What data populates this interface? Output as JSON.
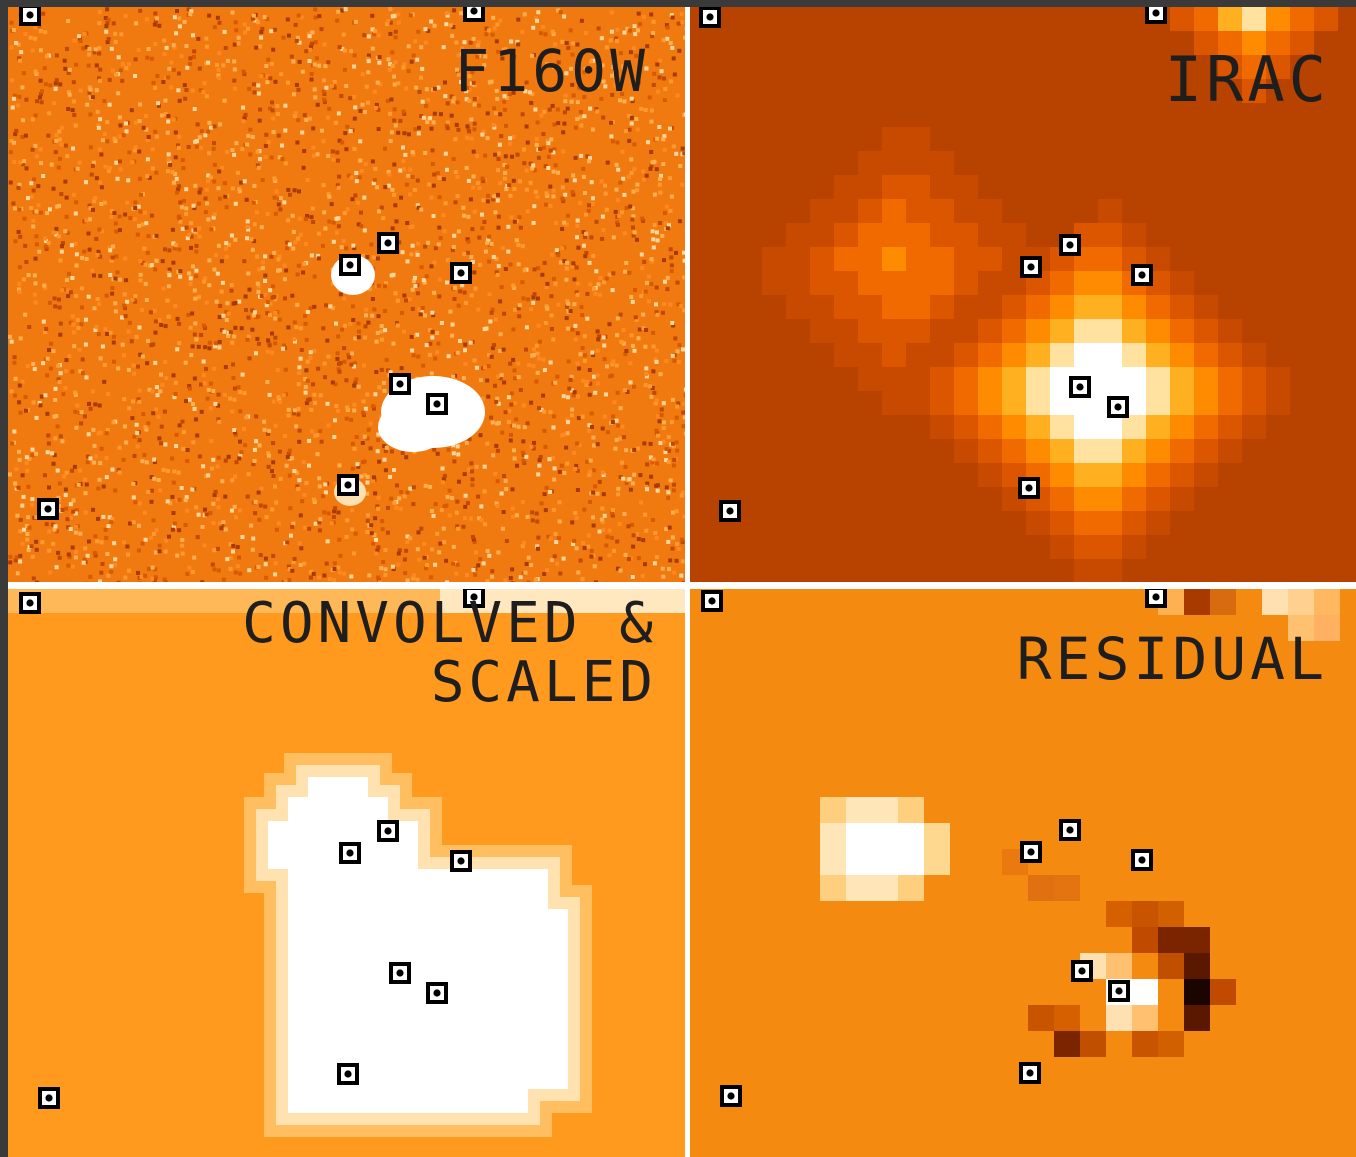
{
  "panels": [
    {
      "id": "f160w",
      "label": "F160W"
    },
    {
      "id": "irac",
      "label": "IRAC"
    },
    {
      "id": "convolved",
      "label_line1": "CONVOLVED &",
      "label_line2": "SCALED"
    },
    {
      "id": "residual",
      "label": "RESIDUAL"
    }
  ],
  "colors": {
    "background_orange": "#f07a10",
    "irac_dark": "#b84200",
    "conv_orange": "#ff9a1e",
    "resid_orange": "#f58a10",
    "source_white": "#ffffff",
    "label_text": "#1e1e1e",
    "marker_black": "#000000"
  }
}
